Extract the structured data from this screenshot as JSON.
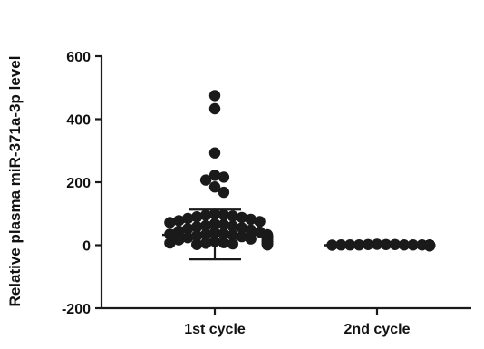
{
  "chart_data": {
    "type": "scatter",
    "title": "",
    "xlabel": "",
    "ylabel": "Relative plasma miR-371a-3p level",
    "ylim": [
      -200,
      600
    ],
    "yticks": [
      "-200",
      "0",
      "200",
      "400",
      "600"
    ],
    "grid": false,
    "legend": "none",
    "categories": [
      "1st cycle",
      "2nd cycle"
    ],
    "colors": {
      "marker": "#1a1a1a",
      "axis": "#1a1a1a"
    },
    "series": [
      {
        "category": "1st cycle",
        "mean": 33,
        "error_upper": 113,
        "error_lower": -45,
        "points": [
          475,
          433,
          293,
          222,
          216,
          207,
          185,
          168,
          98,
          96,
          95,
          92,
          90,
          88,
          85,
          82,
          78,
          75,
          72,
          68,
          65,
          62,
          60,
          58,
          55,
          52,
          48,
          45,
          42,
          40,
          36,
          35,
          34,
          33,
          32,
          31,
          30,
          30,
          29,
          28,
          28,
          27,
          26,
          26,
          25,
          25,
          24,
          24,
          23,
          22,
          22,
          21,
          20,
          20,
          18,
          17,
          16,
          15,
          14,
          13,
          12,
          12,
          11,
          10,
          10,
          9,
          8,
          8,
          7,
          6,
          6,
          5,
          5,
          4,
          4,
          3,
          3,
          2,
          2,
          1
        ]
      },
      {
        "category": "2nd cycle",
        "mean": 0,
        "error_upper": 1,
        "error_lower": -1,
        "points": [
          3,
          2,
          2,
          1,
          1,
          1,
          1,
          0,
          0,
          0,
          0,
          0,
          0,
          0,
          0,
          0,
          -1,
          -1,
          -1,
          -1,
          -2,
          -2,
          -1,
          0,
          1,
          2,
          0,
          1,
          0,
          -1
        ]
      }
    ]
  }
}
